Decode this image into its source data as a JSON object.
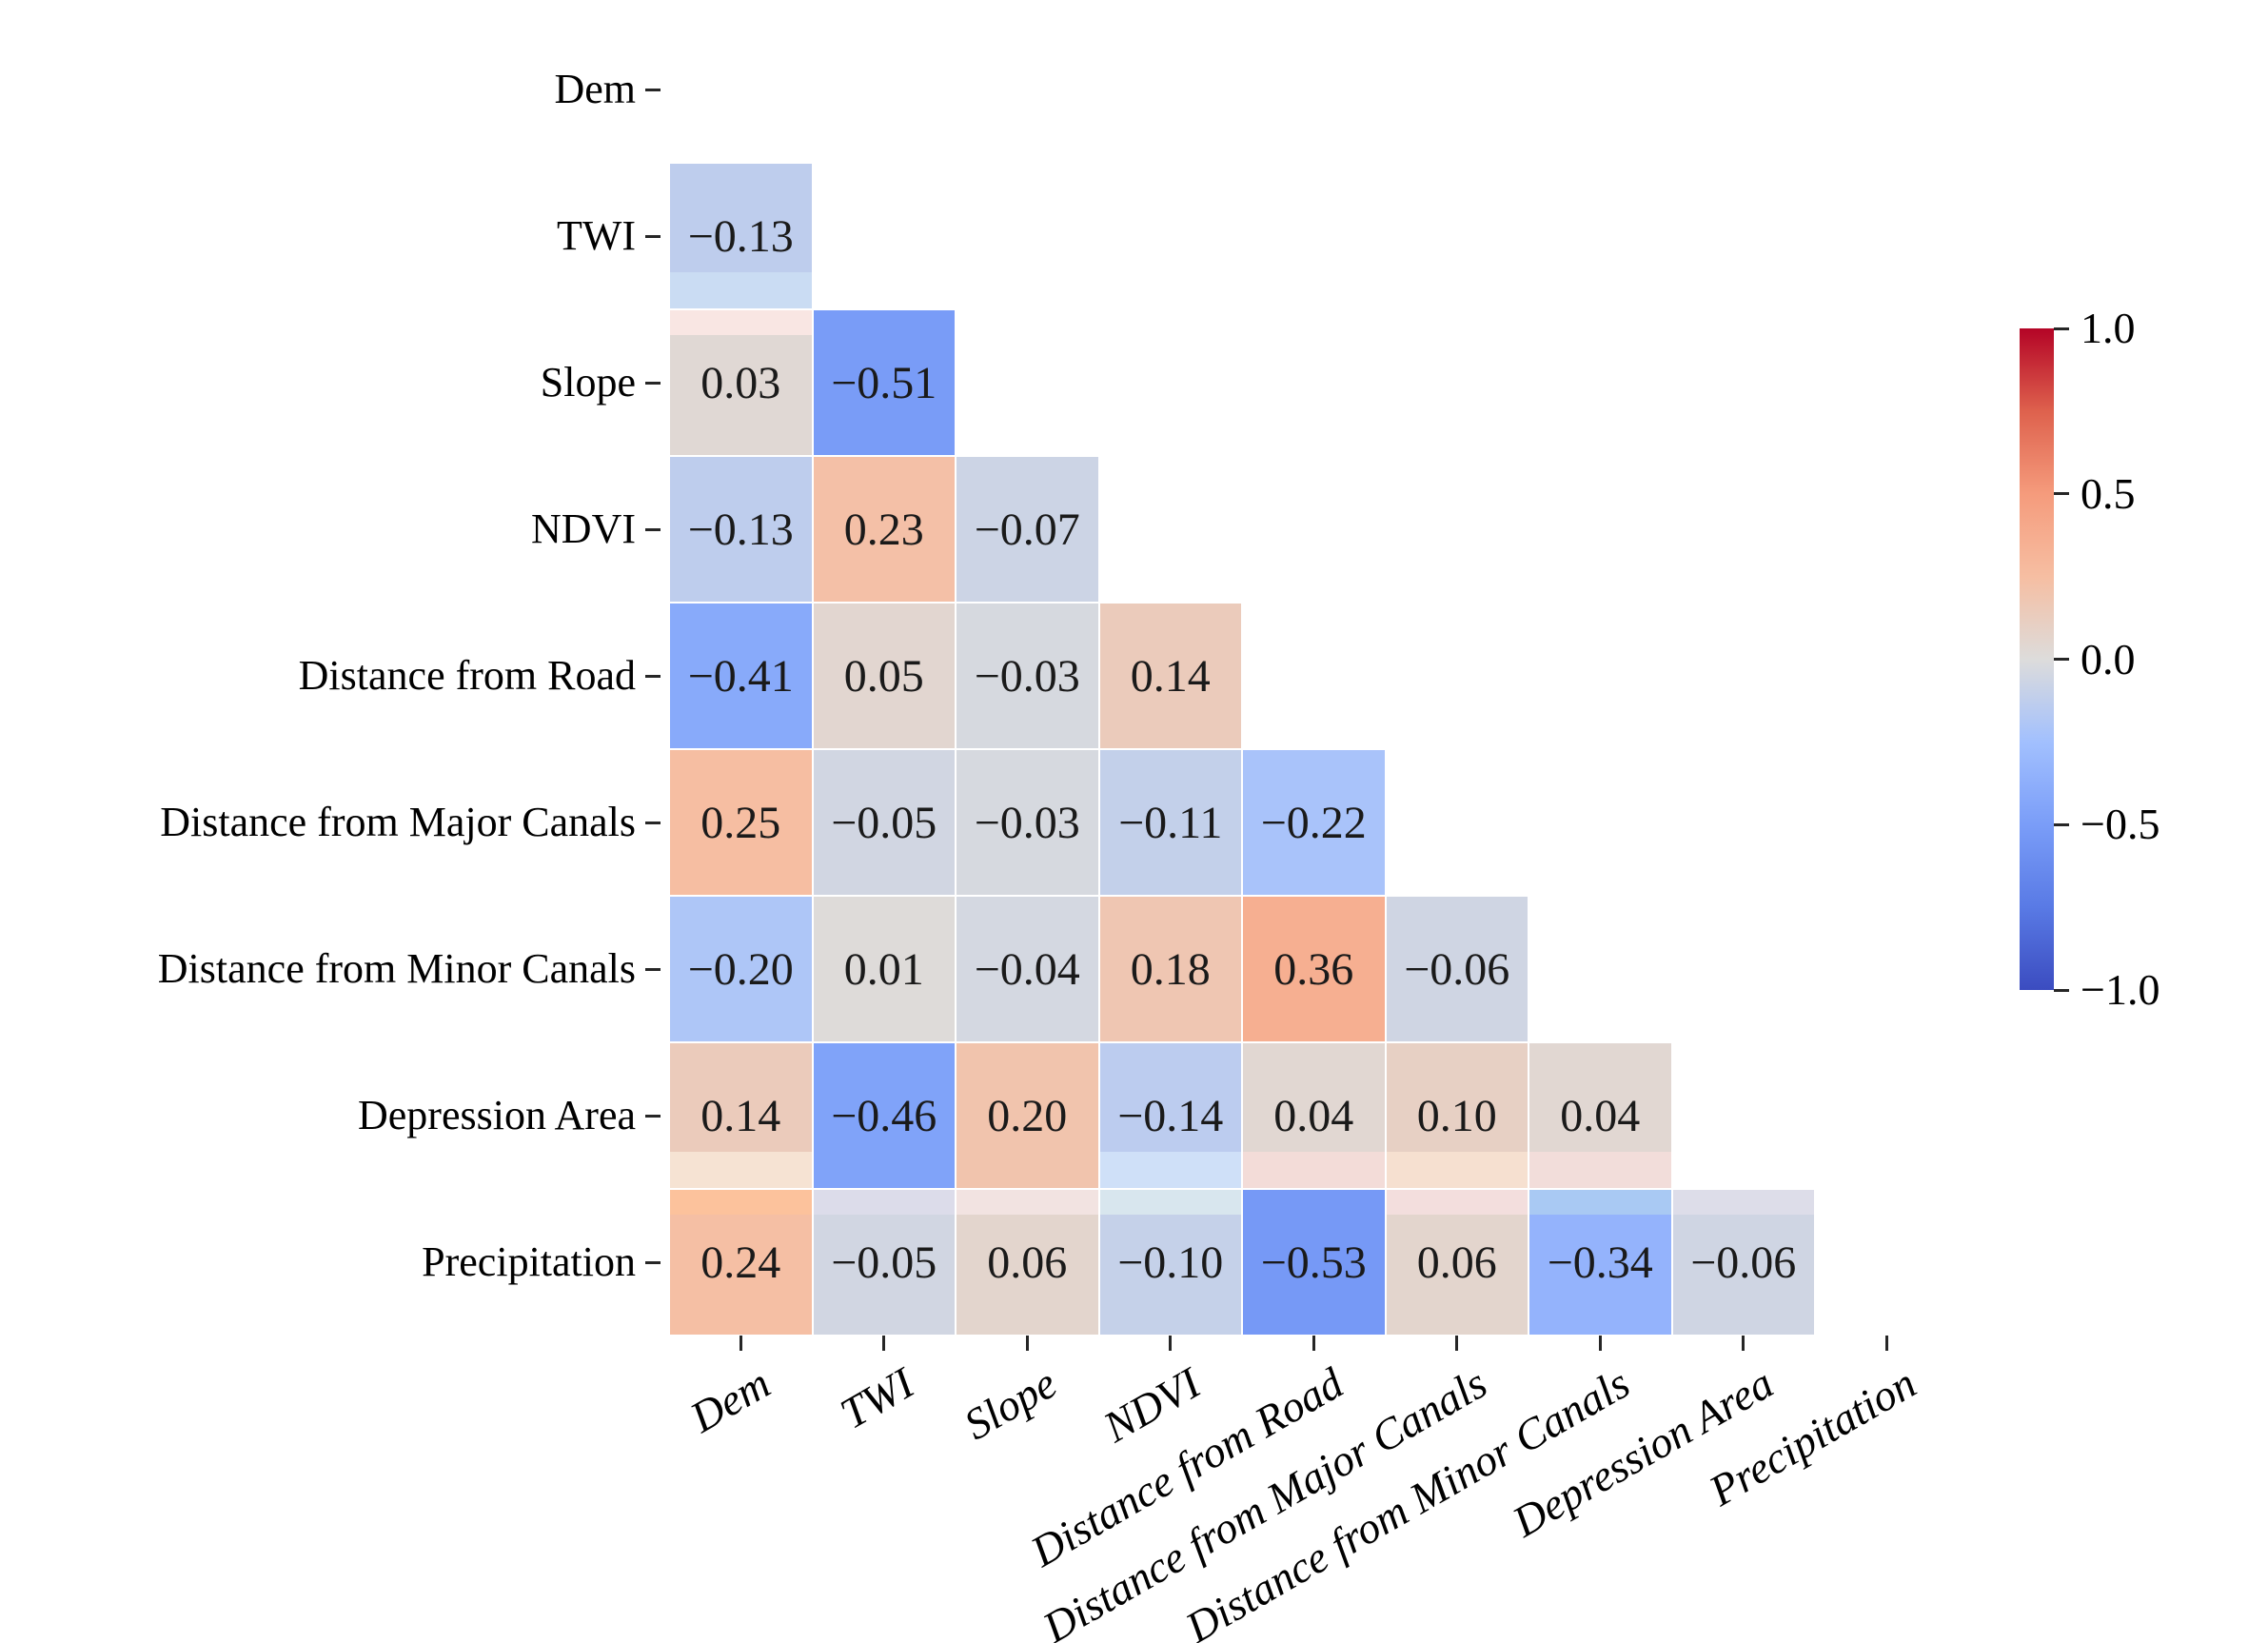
{
  "chart_data": {
    "type": "heatmap",
    "subtype": "correlation-matrix-lower-triangle",
    "title": "",
    "variables": [
      "Dem",
      "TWI",
      "Slope",
      "NDVI",
      "Distance from Road",
      "Distance from Major Canals",
      "Distance from Minor Canals",
      "Depression Area",
      "Precipitation"
    ],
    "y_tick_labels": [
      "Dem",
      "TWI",
      "Slope",
      "NDVI",
      "Distance from Road",
      "Distance from Major Canals",
      "Distance from Minor Canals",
      "Depression Area",
      "Precipitation"
    ],
    "x_tick_labels": [
      "Dem",
      "TWI",
      "Slope",
      "NDVI",
      "Distance from Road",
      "Distance from Major Canals",
      "Distance from Minor Canals",
      "Depression Area",
      "Precipitation"
    ],
    "matrix": [
      [
        null,
        null,
        null,
        null,
        null,
        null,
        null,
        null,
        null
      ],
      [
        -0.13,
        null,
        null,
        null,
        null,
        null,
        null,
        null,
        null
      ],
      [
        0.03,
        -0.51,
        null,
        null,
        null,
        null,
        null,
        null,
        null
      ],
      [
        -0.13,
        0.23,
        -0.07,
        null,
        null,
        null,
        null,
        null,
        null
      ],
      [
        -0.41,
        0.05,
        -0.03,
        0.14,
        null,
        null,
        null,
        null,
        null
      ],
      [
        0.25,
        -0.05,
        -0.03,
        -0.11,
        -0.22,
        null,
        null,
        null,
        null
      ],
      [
        -0.2,
        0.01,
        -0.04,
        0.18,
        0.36,
        -0.06,
        null,
        null,
        null
      ],
      [
        0.14,
        -0.46,
        0.2,
        -0.14,
        0.04,
        0.1,
        0.04,
        null,
        null
      ],
      [
        0.24,
        -0.05,
        0.06,
        -0.1,
        -0.53,
        0.06,
        -0.34,
        -0.06,
        null
      ]
    ],
    "value_decimals": 2,
    "vmin": -1.0,
    "vmax": 1.0,
    "grid": false,
    "annotation_color": "#1a1a1a",
    "background": "#ffffff",
    "colormap_anchors": [
      {
        "v": -1.0,
        "color": "#3b4cc0"
      },
      {
        "v": -0.75,
        "color": "#597ae5"
      },
      {
        "v": -0.5,
        "color": "#7a9df8"
      },
      {
        "v": -0.25,
        "color": "#a2c0fe"
      },
      {
        "v": 0.0,
        "color": "#dddcdb"
      },
      {
        "v": 0.25,
        "color": "#f6bea2"
      },
      {
        "v": 0.5,
        "color": "#f59b7c"
      },
      {
        "v": 0.75,
        "color": "#de614d"
      },
      {
        "v": 1.0,
        "color": "#b40426"
      }
    ],
    "colorbar": {
      "position": "right",
      "tick_values": [
        1.0,
        0.5,
        0.0,
        -0.5,
        -1.0
      ],
      "tick_labels": [
        "1.0",
        "0.5",
        "0.0",
        "−0.5",
        "−1.0"
      ]
    },
    "artifact_bands": {
      "bottom": [
        {
          "row": 1,
          "col": 0,
          "color": "#cadcf3"
        },
        {
          "row": 7,
          "col": 0,
          "color": "#f6e3d3"
        },
        {
          "row": 7,
          "col": 3,
          "color": "#cfe0f8"
        },
        {
          "row": 7,
          "col": 4,
          "color": "#f3dcd8"
        },
        {
          "row": 7,
          "col": 5,
          "color": "#f6e0d0"
        },
        {
          "row": 7,
          "col": 6,
          "color": "#f2ddda"
        }
      ],
      "top": [
        {
          "row": 2,
          "col": 0,
          "color": "#f9e6e3"
        },
        {
          "row": 8,
          "col": 0,
          "color": "#fcc29c"
        },
        {
          "row": 8,
          "col": 1,
          "color": "#dcdcea"
        },
        {
          "row": 8,
          "col": 2,
          "color": "#f2e3e1"
        },
        {
          "row": 8,
          "col": 3,
          "color": "#d8e6ee"
        },
        {
          "row": 8,
          "col": 5,
          "color": "#f3dedd"
        },
        {
          "row": 8,
          "col": 6,
          "color": "#a9c9f3"
        },
        {
          "row": 8,
          "col": 7,
          "color": "#dddde9"
        }
      ]
    }
  }
}
